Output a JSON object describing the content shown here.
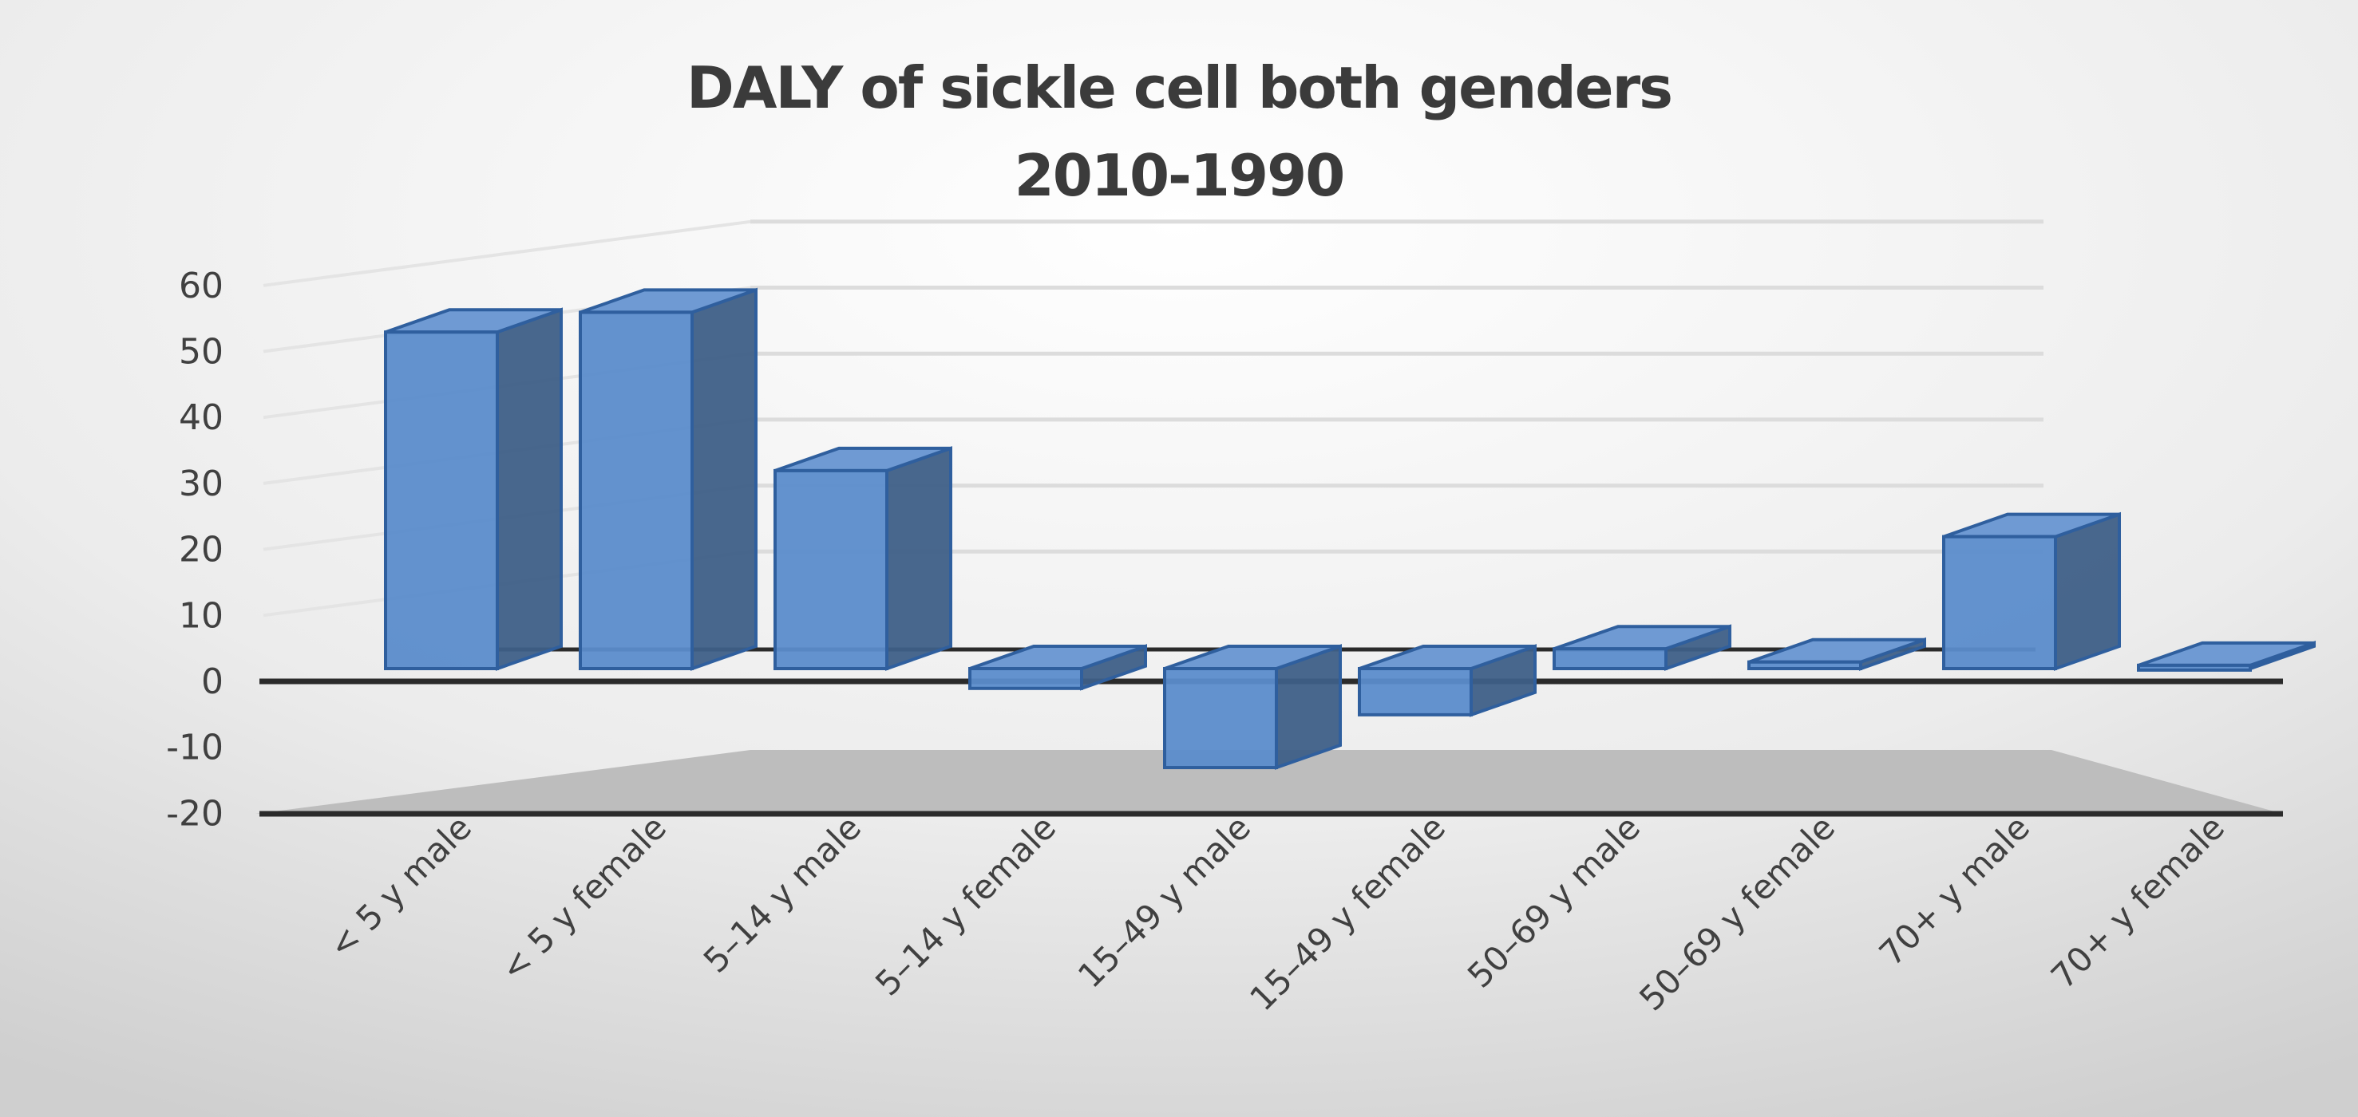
{
  "chart_data": {
    "type": "bar",
    "style": "3d-column",
    "title": "DALY of sickle cell both genders",
    "subtitle": "2010-1990",
    "xlabel": "",
    "ylabel": "",
    "ylim": [
      -20,
      60
    ],
    "yticks": [
      60,
      50,
      40,
      30,
      20,
      10,
      0,
      -10,
      -20
    ],
    "categories": [
      "< 5 y male",
      "< 5 y female",
      "5–14 y male",
      "5–14 y female",
      "15–49 y male",
      "15–49 y female",
      "50–69 y male",
      "50–69 y female",
      "70+ y male",
      "70+ y female"
    ],
    "values": [
      51,
      54,
      30,
      -3,
      -15,
      -7,
      3,
      1,
      20,
      0.5
    ],
    "grid": true,
    "legend": "none",
    "colors": {
      "bar": "#5b8ccb",
      "bar_edge": "#2f5f9e",
      "side": "#3e5f87",
      "axis": "#2b2b2b"
    }
  }
}
